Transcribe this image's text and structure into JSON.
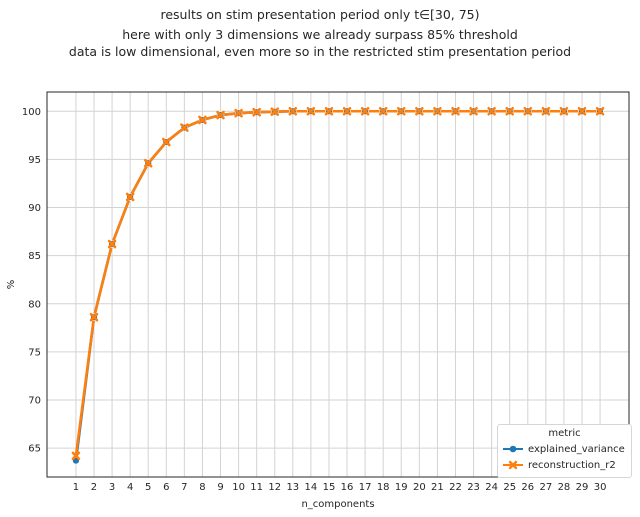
{
  "titles": [
    "results on stim presentation period only t∈[30, 75)",
    "here with only 3 dimensions we already surpass 85% threshold",
    "data is low dimensional, even more so in the restricted stim presentation period"
  ],
  "chart_data": {
    "type": "line",
    "xlabel": "n_components",
    "ylabel": "%",
    "xlim": [
      -0.6,
      31.6
    ],
    "ylim": [
      62,
      102
    ],
    "x_ticks": [
      1,
      2,
      3,
      4,
      5,
      6,
      7,
      8,
      9,
      10,
      11,
      12,
      13,
      14,
      15,
      16,
      17,
      18,
      19,
      20,
      21,
      22,
      23,
      24,
      25,
      26,
      27,
      28,
      29,
      30
    ],
    "y_ticks": [
      65,
      70,
      75,
      80,
      85,
      90,
      95,
      100
    ],
    "grid": true,
    "legend": {
      "title": "metric",
      "position": "lower-right"
    },
    "x": [
      1,
      2,
      3,
      4,
      5,
      6,
      7,
      8,
      9,
      10,
      11,
      12,
      13,
      14,
      15,
      16,
      17,
      18,
      19,
      20,
      21,
      22,
      23,
      24,
      25,
      26,
      27,
      28,
      29,
      30
    ],
    "series": [
      {
        "name": "explained_variance",
        "color": "#1f77b4",
        "marker": "circle",
        "values": [
          63.7,
          78.6,
          86.2,
          91.1,
          94.6,
          96.8,
          98.3,
          99.1,
          99.6,
          99.8,
          99.9,
          99.95,
          100,
          100,
          100,
          100,
          100,
          100,
          100,
          100,
          100,
          100,
          100,
          100,
          100,
          100,
          100,
          100,
          100,
          100
        ]
      },
      {
        "name": "reconstruction_r2",
        "color": "#ff7f0e",
        "marker": "x",
        "values": [
          64.2,
          78.6,
          86.2,
          91.1,
          94.6,
          96.8,
          98.3,
          99.1,
          99.6,
          99.8,
          99.9,
          99.95,
          100,
          100,
          100,
          100,
          100,
          100,
          100,
          100,
          100,
          100,
          100,
          100,
          100,
          100,
          100,
          100,
          100,
          100
        ]
      }
    ]
  }
}
